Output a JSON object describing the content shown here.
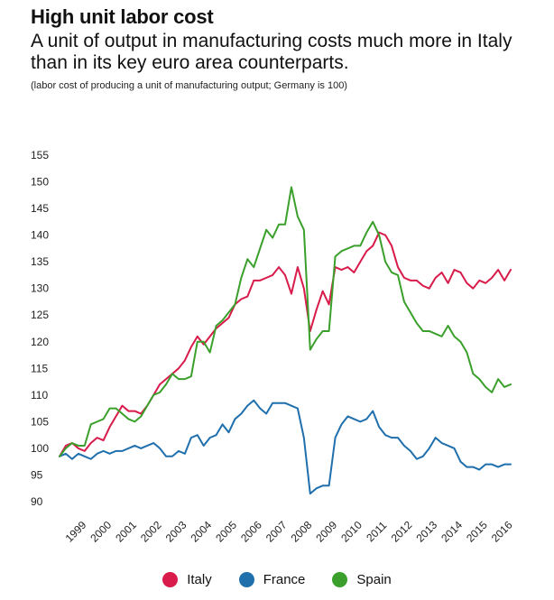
{
  "header": {
    "title": "High unit labor cost",
    "subtitle": "A unit of output in manufacturing costs much more in Italy than in its key euro area counterparts.",
    "note": "(labor cost of producing a unit of manufacturing output; Germany is 100)"
  },
  "colors": {
    "Italy": "#d81b4a",
    "France": "#1f6fad",
    "Spain": "#3aa02b"
  },
  "chart_data": {
    "type": "line",
    "title": "High unit labor cost",
    "subtitle": "A unit of output in manufacturing costs much more in Italy than in its key euro area counterparts.",
    "ylabel": "",
    "xlabel": "",
    "ylim": [
      90,
      155
    ],
    "yticks": [
      90,
      95,
      100,
      105,
      110,
      115,
      120,
      125,
      130,
      135,
      140,
      145,
      150,
      155
    ],
    "xticks": [
      1999,
      2000,
      2001,
      2002,
      2003,
      2004,
      2005,
      2006,
      2007,
      2008,
      2009,
      2010,
      2011,
      2012,
      2013,
      2014,
      2015,
      2016
    ],
    "xlim": [
      1998.25,
      2016.25
    ],
    "grid": false,
    "legend_position": "bottom",
    "x": [
      1998.25,
      1998.5,
      1998.75,
      1999.0,
      1999.25,
      1999.5,
      1999.75,
      2000.0,
      2000.25,
      2000.5,
      2000.75,
      2001.0,
      2001.25,
      2001.5,
      2001.75,
      2002.0,
      2002.25,
      2002.5,
      2002.75,
      2003.0,
      2003.25,
      2003.5,
      2003.75,
      2004.0,
      2004.25,
      2004.5,
      2004.75,
      2005.0,
      2005.25,
      2005.5,
      2005.75,
      2006.0,
      2006.25,
      2006.5,
      2006.75,
      2007.0,
      2007.25,
      2007.5,
      2007.75,
      2008.0,
      2008.25,
      2008.5,
      2008.75,
      2009.0,
      2009.25,
      2009.5,
      2009.75,
      2010.0,
      2010.25,
      2010.5,
      2010.75,
      2011.0,
      2011.25,
      2011.5,
      2011.75,
      2012.0,
      2012.25,
      2012.5,
      2012.75,
      2013.0,
      2013.25,
      2013.5,
      2013.75,
      2014.0,
      2014.25,
      2014.5,
      2014.75,
      2015.0,
      2015.25,
      2015.5,
      2015.75,
      2016.0,
      2016.25
    ],
    "series": [
      {
        "name": "Italy",
        "values": [
          98.5,
          100.5,
          101.0,
          100.0,
          99.5,
          101.0,
          102.0,
          101.5,
          104.0,
          106.0,
          108.0,
          107.0,
          107.0,
          106.5,
          108.0,
          110.0,
          112.0,
          113.0,
          114.0,
          115.0,
          116.5,
          119.0,
          121.0,
          119.5,
          121.0,
          122.5,
          123.5,
          124.5,
          127.0,
          128.0,
          128.5,
          131.5,
          131.5,
          132.0,
          132.5,
          134.0,
          132.5,
          129.0,
          134.0,
          130.0,
          122.0,
          126.0,
          129.5,
          127.0,
          134.0,
          133.5,
          134.0,
          133.0,
          135.0,
          137.0,
          138.0,
          140.5,
          140.0,
          138.0,
          134.0,
          132.0,
          131.5,
          131.5,
          130.5,
          130.0,
          132.0,
          133.0,
          131.0,
          133.5,
          133.0,
          131.0,
          130.0,
          131.5,
          131.0,
          132.0,
          133.5,
          131.5,
          133.5
        ]
      },
      {
        "name": "France",
        "values": [
          98.5,
          99.0,
          98.0,
          99.0,
          98.5,
          98.0,
          99.0,
          99.5,
          99.0,
          99.5,
          99.5,
          100.0,
          100.5,
          100.0,
          100.5,
          101.0,
          100.0,
          98.5,
          98.5,
          99.5,
          99.0,
          102.0,
          102.5,
          100.5,
          102.0,
          102.5,
          104.5,
          103.0,
          105.5,
          106.5,
          108.0,
          109.0,
          107.5,
          106.5,
          108.5,
          108.5,
          108.5,
          108.0,
          107.5,
          102.0,
          91.5,
          92.5,
          93.0,
          93.0,
          102.0,
          104.5,
          106.0,
          105.5,
          105.0,
          105.5,
          107.0,
          104.0,
          102.5,
          102.0,
          102.0,
          100.5,
          99.5,
          98.0,
          98.5,
          100.0,
          102.0,
          101.0,
          100.5,
          100.0,
          97.5,
          96.5,
          96.5,
          96.0,
          97.0,
          97.0,
          96.5,
          97.0,
          97.0
        ]
      },
      {
        "name": "Spain",
        "values": [
          98.5,
          100.0,
          101.0,
          100.5,
          100.5,
          104.5,
          105.0,
          105.5,
          107.5,
          107.5,
          106.5,
          105.5,
          105.0,
          106.0,
          108.0,
          110.0,
          110.5,
          112.0,
          114.0,
          113.0,
          113.0,
          113.5,
          120.0,
          120.0,
          118.0,
          123.0,
          124.0,
          125.5,
          127.0,
          132.0,
          135.5,
          134.0,
          137.5,
          141.0,
          139.5,
          142.0,
          142.0,
          149.0,
          143.5,
          141.0,
          118.5,
          120.5,
          122.0,
          122.0,
          136.0,
          137.0,
          137.5,
          138.0,
          138.0,
          140.5,
          142.5,
          140.0,
          135.0,
          133.0,
          132.5,
          127.5,
          125.5,
          123.5,
          122.0,
          122.0,
          121.5,
          121.0,
          123.0,
          121.0,
          120.0,
          118.0,
          114.0,
          113.0,
          111.5,
          110.5,
          113.0,
          111.5,
          112.0
        ]
      }
    ]
  }
}
